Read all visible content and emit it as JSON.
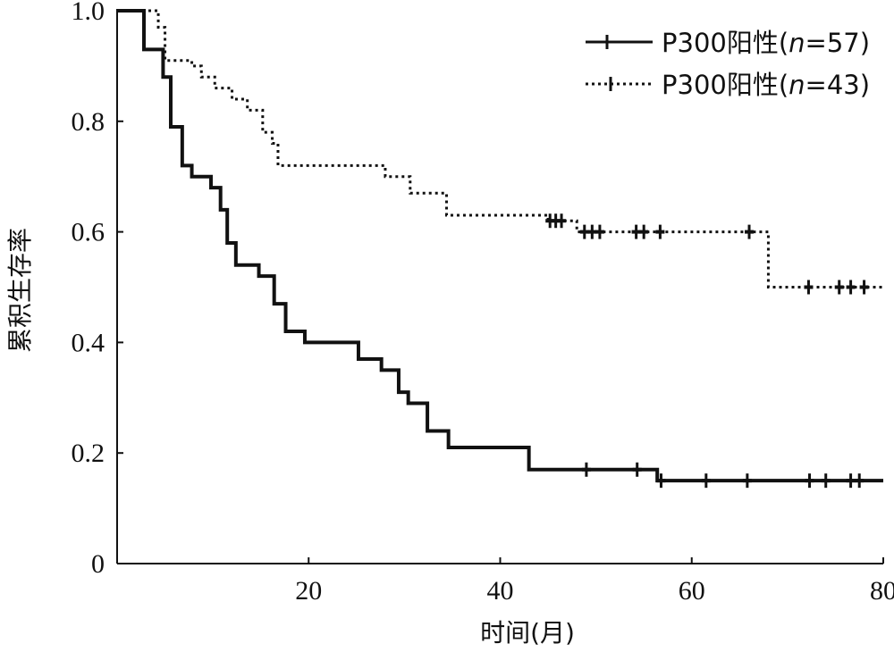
{
  "colors": {
    "line": "#111111",
    "background": "#ffffff"
  },
  "chart_data": {
    "type": "line",
    "title": "",
    "xlabel": "时间(月)",
    "ylabel": "累积生存率",
    "xlim": [
      0,
      80
    ],
    "ylim": [
      0,
      1.0
    ],
    "x_ticks": [
      "20",
      "40",
      "60",
      "80"
    ],
    "y_ticks": [
      "0",
      "0.2",
      "0.4",
      "0.6",
      "0.8",
      "1.0"
    ],
    "grid": false,
    "legend": {
      "position": "top-right",
      "items": [
        {
          "label_prefix": "P300阳性(",
          "label_italic": "n",
          "label_suffix": "=57)",
          "style": "solid"
        },
        {
          "label_prefix": "P300阳性(",
          "label_italic": "n",
          "label_suffix": "=43)",
          "style": "dotted"
        }
      ]
    },
    "series": [
      {
        "name": "P300阳性(n=57)",
        "style": "solid",
        "steps": [
          [
            0,
            1.0
          ],
          [
            2.8,
            0.93
          ],
          [
            4.8,
            0.88
          ],
          [
            5.6,
            0.79
          ],
          [
            6.8,
            0.72
          ],
          [
            7.8,
            0.7
          ],
          [
            9.8,
            0.68
          ],
          [
            10.8,
            0.64
          ],
          [
            11.5,
            0.58
          ],
          [
            12.4,
            0.54
          ],
          [
            14.8,
            0.52
          ],
          [
            16.4,
            0.47
          ],
          [
            17.6,
            0.42
          ],
          [
            19.6,
            0.4
          ],
          [
            25.2,
            0.37
          ],
          [
            27.6,
            0.35
          ],
          [
            29.4,
            0.31
          ],
          [
            30.4,
            0.29
          ],
          [
            32.4,
            0.24
          ],
          [
            34.6,
            0.21
          ],
          [
            43.0,
            0.17
          ],
          [
            56.4,
            0.15
          ],
          [
            80,
            0.15
          ]
        ],
        "censor_x": [
          49.0,
          54.3,
          56.8,
          61.5,
          65.8,
          72.3,
          74.0,
          76.6,
          77.5
        ]
      },
      {
        "name": "P300阳性(n=43)",
        "style": "dotted",
        "steps": [
          [
            0,
            1.0
          ],
          [
            4.3,
            0.97
          ],
          [
            5.0,
            0.91
          ],
          [
            7.8,
            0.9
          ],
          [
            8.8,
            0.88
          ],
          [
            10.2,
            0.86
          ],
          [
            12.0,
            0.84
          ],
          [
            13.6,
            0.82
          ],
          [
            15.2,
            0.78
          ],
          [
            16.2,
            0.76
          ],
          [
            16.8,
            0.72
          ],
          [
            28.0,
            0.7
          ],
          [
            30.6,
            0.67
          ],
          [
            34.4,
            0.63
          ],
          [
            45.0,
            0.62
          ],
          [
            48.0,
            0.6
          ],
          [
            68.0,
            0.5
          ],
          [
            80,
            0.5
          ]
        ],
        "censor_x": [
          45.2,
          45.8,
          46.4,
          48.8,
          49.6,
          50.4,
          54.2,
          55.0,
          56.7,
          66.0,
          72.2,
          75.4,
          76.6,
          78.0
        ]
      }
    ]
  }
}
